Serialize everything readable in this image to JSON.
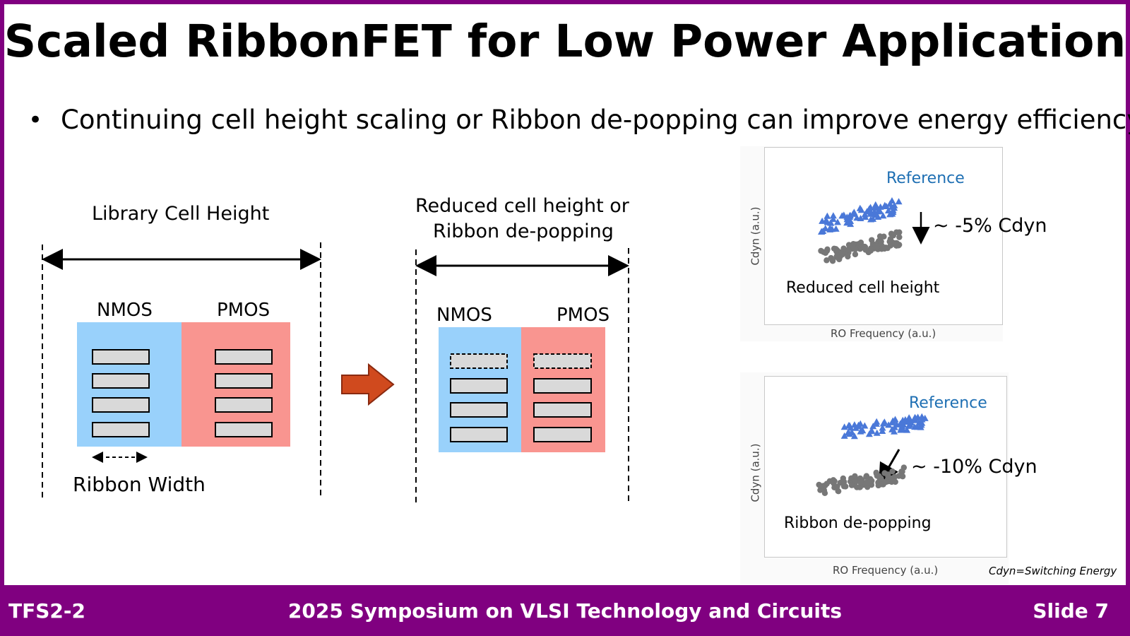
{
  "slide": {
    "title": "Scaled RibbonFET for Low Power Application",
    "bullet": "Continuing cell height scaling or Ribbon de-popping can improve energy efficiency"
  },
  "left_diagram": {
    "header": "Library Cell Height",
    "nmos": "NMOS",
    "pmos": "PMOS",
    "ribbon_width": "Ribbon Width"
  },
  "right_diagram": {
    "header_line1": "Reduced cell height or",
    "header_line2": "Ribbon de-popping",
    "nmos": "NMOS",
    "pmos": "PMOS"
  },
  "plot_top": {
    "reference": "Reference",
    "annotation": "~ -5% Cdyn",
    "label": "Reduced cell height",
    "xlabel": "RO Frequency (a.u.)",
    "ylabel": "Cdyn (a.u.)"
  },
  "plot_bottom": {
    "reference": "Reference",
    "annotation": "~ -10% Cdyn",
    "label": "Ribbon de-popping",
    "xlabel": "RO Frequency (a.u.)",
    "ylabel": "Cdyn (a.u.)",
    "note": "Cdyn=Switching Energy"
  },
  "footer": {
    "left": "TFS2-2",
    "center": "2025 Symposium on VLSI Technology and Circuits",
    "right": "Slide 7"
  },
  "colors": {
    "brand": "#800080",
    "nmos_fill": "#99d1fb",
    "pmos_fill": "#f99590",
    "arrow": "#d04a1e",
    "reference_text": "#1e6fb3",
    "reference_points": "#4a78d8",
    "reduced_points": "#777777"
  }
}
